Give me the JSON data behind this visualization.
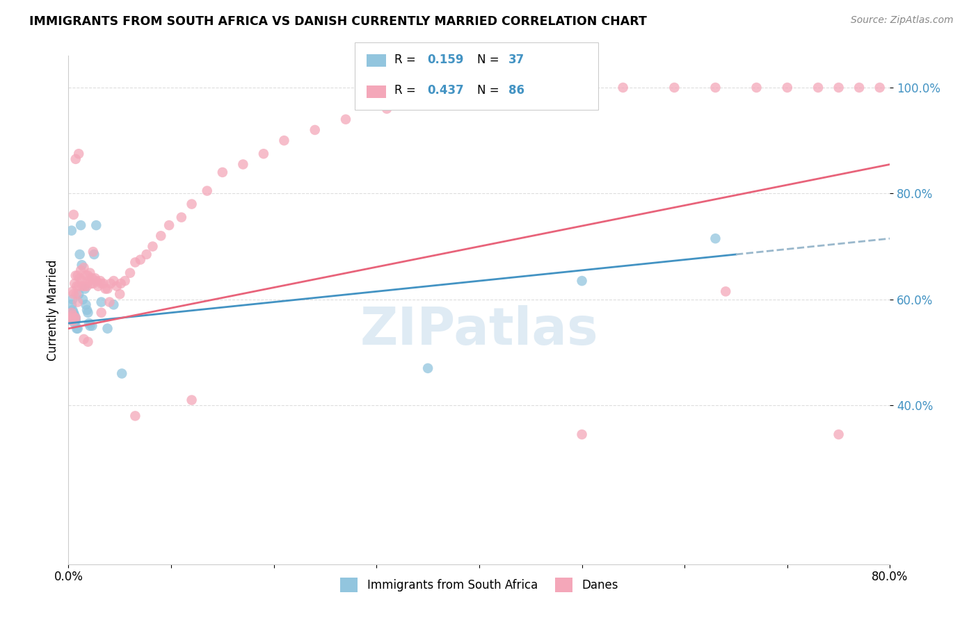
{
  "title": "IMMIGRANTS FROM SOUTH AFRICA VS DANISH CURRENTLY MARRIED CORRELATION CHART",
  "source": "Source: ZipAtlas.com",
  "ylabel": "Currently Married",
  "legend_label1": "Immigrants from South Africa",
  "legend_label2": "Danes",
  "r1": "0.159",
  "n1": "37",
  "r2": "0.437",
  "n2": "86",
  "color_blue": "#92C5DE",
  "color_pink": "#F4A7B9",
  "line_blue": "#4393C3",
  "line_pink": "#E8637A",
  "dash_color": "#9ab8cc",
  "blue_scatter_x": [
    0.002,
    0.003,
    0.003,
    0.004,
    0.004,
    0.004,
    0.005,
    0.005,
    0.005,
    0.006,
    0.006,
    0.007,
    0.007,
    0.008,
    0.009,
    0.01,
    0.011,
    0.012,
    0.013,
    0.014,
    0.016,
    0.017,
    0.018,
    0.019,
    0.02,
    0.021,
    0.023,
    0.025,
    0.027,
    0.032,
    0.038,
    0.044,
    0.052,
    0.35,
    0.5,
    0.63,
    0.003
  ],
  "blue_scatter_y": [
    0.565,
    0.59,
    0.565,
    0.57,
    0.58,
    0.6,
    0.56,
    0.565,
    0.575,
    0.555,
    0.57,
    0.56,
    0.565,
    0.545,
    0.545,
    0.61,
    0.685,
    0.74,
    0.665,
    0.6,
    0.62,
    0.59,
    0.58,
    0.575,
    0.555,
    0.55,
    0.55,
    0.685,
    0.74,
    0.595,
    0.545,
    0.59,
    0.46,
    0.47,
    0.635,
    0.715,
    0.73
  ],
  "pink_scatter_x": [
    0.002,
    0.003,
    0.004,
    0.004,
    0.005,
    0.005,
    0.006,
    0.006,
    0.007,
    0.007,
    0.008,
    0.008,
    0.009,
    0.009,
    0.01,
    0.011,
    0.012,
    0.013,
    0.014,
    0.015,
    0.016,
    0.017,
    0.018,
    0.019,
    0.02,
    0.021,
    0.022,
    0.023,
    0.024,
    0.026,
    0.027,
    0.029,
    0.031,
    0.032,
    0.034,
    0.036,
    0.038,
    0.041,
    0.044,
    0.047,
    0.051,
    0.055,
    0.06,
    0.065,
    0.07,
    0.076,
    0.082,
    0.09,
    0.098,
    0.11,
    0.12,
    0.135,
    0.15,
    0.17,
    0.19,
    0.21,
    0.24,
    0.27,
    0.31,
    0.35,
    0.39,
    0.44,
    0.49,
    0.54,
    0.59,
    0.63,
    0.67,
    0.7,
    0.73,
    0.75,
    0.77,
    0.79,
    0.003,
    0.005,
    0.007,
    0.01,
    0.015,
    0.019,
    0.024,
    0.032,
    0.04,
    0.05,
    0.065,
    0.12,
    0.5,
    0.64,
    0.75
  ],
  "pink_scatter_y": [
    0.565,
    0.575,
    0.57,
    0.615,
    0.56,
    0.61,
    0.565,
    0.63,
    0.565,
    0.645,
    0.625,
    0.61,
    0.595,
    0.645,
    0.625,
    0.64,
    0.655,
    0.635,
    0.625,
    0.66,
    0.625,
    0.645,
    0.625,
    0.645,
    0.635,
    0.65,
    0.63,
    0.64,
    0.63,
    0.64,
    0.635,
    0.625,
    0.635,
    0.63,
    0.63,
    0.62,
    0.62,
    0.63,
    0.635,
    0.625,
    0.63,
    0.635,
    0.65,
    0.67,
    0.675,
    0.685,
    0.7,
    0.72,
    0.74,
    0.755,
    0.78,
    0.805,
    0.84,
    0.855,
    0.875,
    0.9,
    0.92,
    0.94,
    0.96,
    0.98,
    1.0,
    1.0,
    1.0,
    1.0,
    1.0,
    1.0,
    1.0,
    1.0,
    1.0,
    1.0,
    1.0,
    1.0,
    0.56,
    0.76,
    0.865,
    0.875,
    0.525,
    0.52,
    0.69,
    0.575,
    0.595,
    0.61,
    0.38,
    0.41,
    0.345,
    0.615,
    0.345
  ],
  "xlim": [
    0.0,
    0.8
  ],
  "ylim": [
    0.1,
    1.06
  ],
  "ytick_vals": [
    0.4,
    0.6,
    0.8,
    1.0
  ],
  "ytick_labels": [
    "40.0%",
    "60.0%",
    "80.0%",
    "100.0%"
  ],
  "xtick_positions": [
    0.0,
    0.1,
    0.2,
    0.3,
    0.4,
    0.5,
    0.6,
    0.7,
    0.8
  ],
  "xtick_labels": [
    "0.0%",
    "",
    "",
    "",
    "",
    "",
    "",
    "",
    "80.0%"
  ],
  "watermark": "ZIPatlas",
  "blue_line_start": 0.0,
  "blue_line_solid_end": 0.65,
  "blue_line_dash_end": 0.8,
  "pink_line_start": 0.0,
  "pink_line_end": 0.8,
  "blue_line_y0": 0.555,
  "blue_line_y1": 0.715,
  "pink_line_y0": 0.545,
  "pink_line_y1": 0.855,
  "tick_color": "#4393C3",
  "grid_color": "#dddddd",
  "spine_color": "#cccccc"
}
